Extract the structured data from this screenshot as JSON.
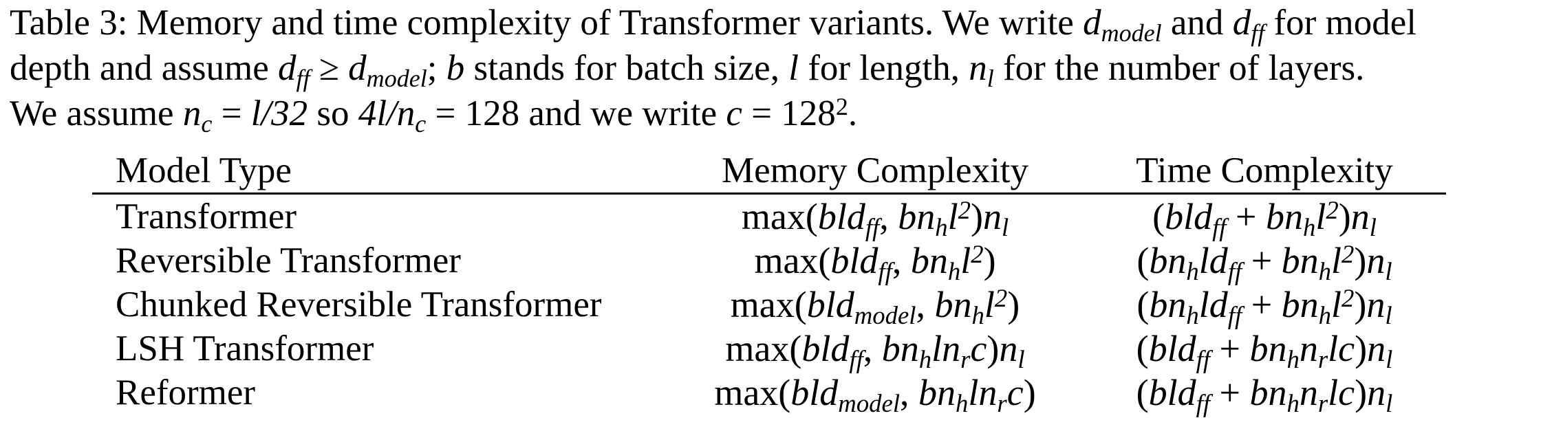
{
  "caption": {
    "label": "Table 3:",
    "l1_a": "Memory and time complexity of Transformer variants. We write",
    "d": "d",
    "model": "model",
    "and": "and",
    "ff": "ff",
    "l1_b": "for model",
    "l2_a": "depth and assume",
    "geq": "≥",
    "l2_b": "stands for batch size,",
    "l": "l",
    "l2_c": "for length,",
    "n": "n",
    "l2_d": "for the number of layers.",
    "l3_a": "We assume",
    "c": "c",
    "eq1": "=",
    "l32": "l/32",
    "so": "so",
    "four_l": "4l/n",
    "eq2": "= 128",
    "l3_b": "and we write",
    "eq3": "= 128",
    "two": "2",
    "period": ".",
    "semicolon": ";",
    "b": "b"
  },
  "table": {
    "headers": [
      "Model Type",
      "Memory Complexity",
      "Time Complexity"
    ],
    "rows": [
      {
        "model": "Transformer",
        "memory": "max(bld_ff, bn_h l^2) n_l",
        "time": "(bld_ff + bn_h l^2) n_l"
      },
      {
        "model": "Reversible Transformer",
        "memory": "max(bld_ff, bn_h l^2)",
        "time": "(bn_h ld_ff + bn_h l^2) n_l"
      },
      {
        "model": "Chunked Reversible Transformer",
        "memory": "max(bld_model, bn_h l^2)",
        "time": "(bn_h ld_ff + bn_h l^2) n_l"
      },
      {
        "model": "LSH Transformer",
        "memory": "max(bld_ff, bn_h l n_r c) n_l",
        "time": "(bld_ff + bn_h n_r lc) n_l"
      },
      {
        "model": "Reformer",
        "memory": "max(bld_model, bn_h l n_r c)",
        "time": "(bld_ff + bn_h n_r lc) n_l"
      }
    ]
  }
}
